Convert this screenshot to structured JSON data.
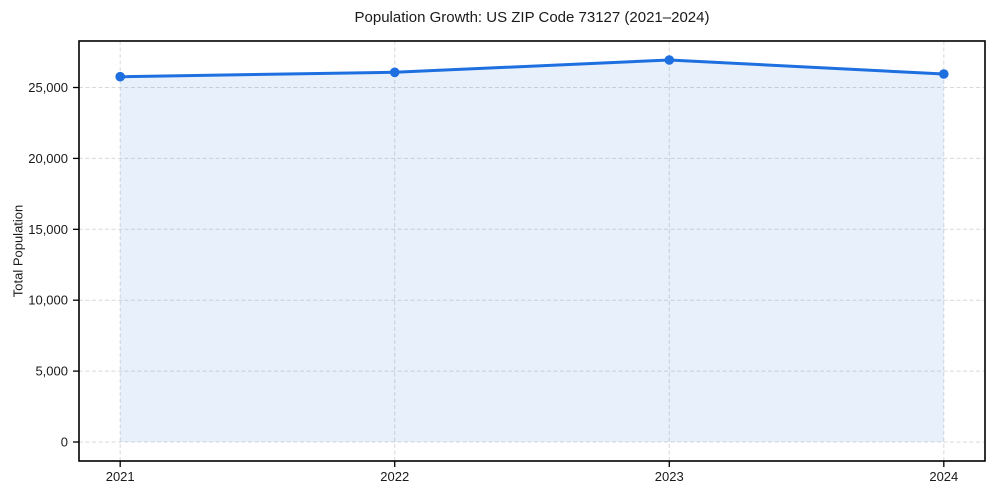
{
  "figure": {
    "background": "#ffffff"
  },
  "chart_data": {
    "type": "line",
    "title": "Population Growth: US ZIP Code 73127 (2021–2024)",
    "xlabel": "",
    "ylabel": "Total Population",
    "categories": [
      "2021",
      "2022",
      "2023",
      "2024"
    ],
    "x_values": [
      2021,
      2022,
      2023,
      2024
    ],
    "series": [
      {
        "name": "Total Population",
        "values": [
          25760,
          26070,
          26940,
          25950
        ]
      }
    ],
    "y_ticks": [
      {
        "value": 0,
        "label": "0"
      },
      {
        "value": 5000,
        "label": "5,000"
      },
      {
        "value": 10000,
        "label": "10,000"
      },
      {
        "value": 15000,
        "label": "15,000"
      },
      {
        "value": 20000,
        "label": "20,000"
      },
      {
        "value": 25000,
        "label": "25,000"
      }
    ],
    "xlim": [
      2020.85,
      2024.15
    ],
    "ylim": [
      -1340,
      28280
    ],
    "grid": true,
    "grid_style": "dashed",
    "legend_position": "none",
    "area_fill": true,
    "style": {
      "line_color": "#1e6fe0",
      "marker_color": "#1e6fe0",
      "fill_color": "rgba(30, 111, 224, 0.10)",
      "grid_color": "#d9d9d9",
      "axis_color": "#000000",
      "text_color": "#1a1a1a"
    }
  }
}
